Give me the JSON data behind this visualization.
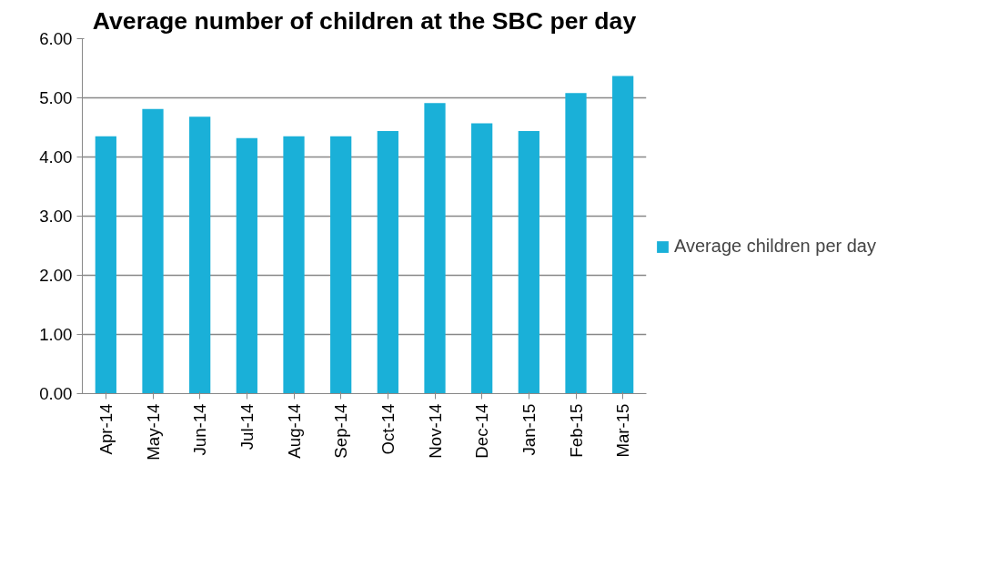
{
  "chart_data": {
    "type": "bar",
    "title": "Average number of children at the SBC per day",
    "categories": [
      "Apr-14",
      "May-14",
      "Jun-14",
      "Jul-14",
      "Aug-14",
      "Sep-14",
      "Oct-14",
      "Nov-14",
      "Dec-14",
      "Jan-15",
      "Feb-15",
      "Mar-15"
    ],
    "series": [
      {
        "name": "Average children per day",
        "color": "#1ab0d8",
        "values": [
          4.35,
          4.81,
          4.68,
          4.32,
          4.35,
          4.35,
          4.44,
          4.91,
          4.57,
          4.44,
          5.08,
          5.37
        ]
      }
    ],
    "ylim": [
      0,
      6
    ],
    "yticks": [
      {
        "value": 0,
        "label": "0.00"
      },
      {
        "value": 1,
        "label": "1.00"
      },
      {
        "value": 2,
        "label": "2.00"
      },
      {
        "value": 3,
        "label": "3.00"
      },
      {
        "value": 4,
        "label": "4.00"
      },
      {
        "value": 5,
        "label": "5.00"
      },
      {
        "value": 6,
        "label": "6.00"
      }
    ],
    "grid": "y",
    "legend": "right"
  }
}
